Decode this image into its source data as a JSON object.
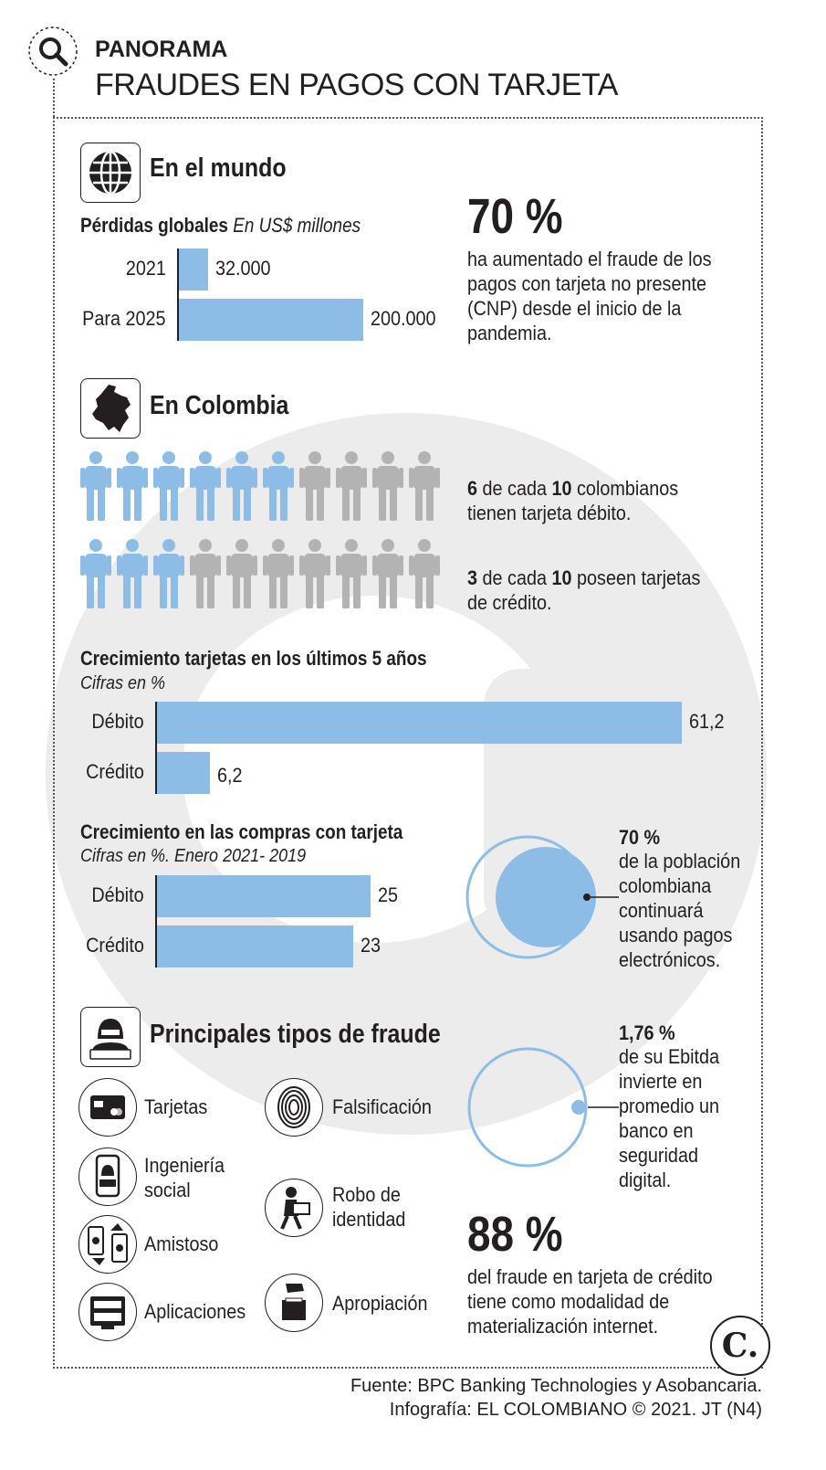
{
  "header": {
    "kicker": "PANORAMA",
    "title": "FRAUDES EN PAGOS CON TARJETA"
  },
  "world": {
    "section_title": "En el mundo",
    "losses_title": "Pérdidas globales",
    "losses_unit": "En US$ millones",
    "stat_value": "70 %",
    "stat_text": "ha aumentado el fraude de los pagos con tarjeta no presente (CNP) desde el inicio de la pandemia."
  },
  "colombia": {
    "section_title": "En Colombia",
    "debit_stat_num": "6",
    "debit_stat_mid": " de cada ",
    "debit_stat_den": "10",
    "debit_stat_rest": " colombianos tienen tarjeta débito.",
    "credit_stat_num": "3",
    "credit_stat_mid": " de cada ",
    "credit_stat_den": "10",
    "credit_stat_rest": " poseen tarjetas de crédito.",
    "growth_title": "Crecimiento tarjetas en los últimos 5 años",
    "growth_unit": "Cifras en %",
    "purchases_title": "Crecimiento en las compras con tarjeta",
    "purchases_unit": "Cifras en %. Enero 2021- 2019",
    "electronic_value": "70 %",
    "electronic_text": "de la población colombiana continuará usando pagos electrónicos.",
    "ebitda_value": "1,76 %",
    "ebitda_text": "de su Ebitda invierte en promedio un banco en seguridad digital."
  },
  "fraud": {
    "section_title": "Principales tipos de fraude",
    "types": [
      {
        "label": "Tarjetas",
        "icon": "credit-card-icon"
      },
      {
        "label": "Ingeniería social",
        "icon": "phone-hacker-icon"
      },
      {
        "label": "Amistoso",
        "icon": "money-exchange-icon"
      },
      {
        "label": "Aplicaciones",
        "icon": "login-screen-icon"
      },
      {
        "label": "Falsificación",
        "icon": "fingerprint-icon"
      },
      {
        "label": "Robo de identidad",
        "icon": "thief-icon"
      },
      {
        "label": "Apropiación",
        "icon": "hand-box-icon"
      }
    ],
    "internet_value": "88 %",
    "internet_text": "del fraude en tarjeta de crédito tiene como modalidad de materialización internet."
  },
  "footer": {
    "source": "Fuente: BPC Banking Technologies y Asobancaria.",
    "credit": "Infografía: EL COLOMBIANO © 2021. JT (N4)",
    "logo": "C."
  },
  "colors": {
    "bar": "#8dbde6",
    "person_blue": "#8dbde6",
    "person_gray": "#b3b3b3",
    "text": "#231f20",
    "watermark": "#ececec"
  },
  "chart_data": [
    {
      "type": "bar",
      "orientation": "horizontal",
      "title": "Pérdidas globales",
      "subtitle": "En US$ millones",
      "categories": [
        "2021",
        "Para 2025"
      ],
      "values": [
        32000,
        200000
      ],
      "value_labels": [
        "32.000",
        "200.000"
      ]
    },
    {
      "type": "bar",
      "orientation": "horizontal",
      "title": "Crecimiento tarjetas en los últimos 5 años",
      "subtitle": "Cifras en %",
      "categories": [
        "Débito",
        "Crédito"
      ],
      "values": [
        61.2,
        6.2
      ],
      "value_labels": [
        "61,2",
        "6,2"
      ]
    },
    {
      "type": "bar",
      "orientation": "horizontal",
      "title": "Crecimiento en las compras con tarjeta",
      "subtitle": "Cifras en %. Enero 2021- 2019",
      "categories": [
        "Débito",
        "Crédito"
      ],
      "values": [
        25,
        23
      ],
      "value_labels": [
        "25",
        "23"
      ]
    },
    {
      "type": "pictogram",
      "total": 10,
      "rows": [
        {
          "highlighted": 6,
          "label": "tarjeta débito"
        },
        {
          "highlighted": 3,
          "label": "tarjetas de crédito"
        }
      ]
    },
    {
      "type": "pie",
      "share_percent": 70
    },
    {
      "type": "pie",
      "share_percent": 1.76
    }
  ]
}
